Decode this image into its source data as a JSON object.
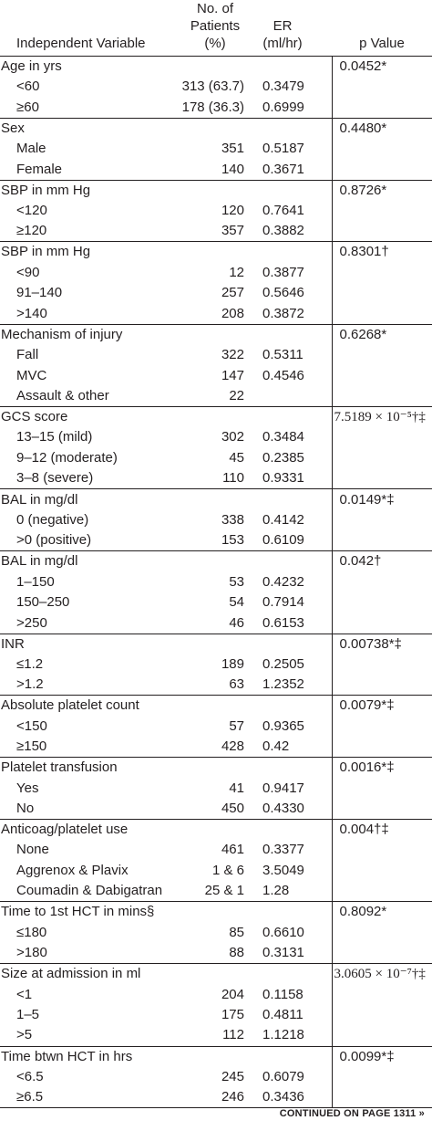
{
  "header": {
    "variable": "Independent Variable",
    "patients_line1": "No. of",
    "patients_line2": "Patients (%)",
    "er_line1": "ER",
    "er_line2": "(ml/hr)",
    "p_value": "p Value"
  },
  "groups": [
    {
      "label": "Age in yrs",
      "p": "0.0452*",
      "rows": [
        {
          "label": "<60",
          "patients": "313 (63.7)",
          "er": "0.3479"
        },
        {
          "label": "≥60",
          "patients": "178 (36.3)",
          "er": "0.6999"
        }
      ]
    },
    {
      "label": "Sex",
      "p": "0.4480*",
      "rows": [
        {
          "label": "Male",
          "patients": "351",
          "er": "0.5187"
        },
        {
          "label": "Female",
          "patients": "140",
          "er": "0.3671"
        }
      ]
    },
    {
      "label": "SBP in mm Hg",
      "p": "0.8726*",
      "rows": [
        {
          "label": "<120",
          "patients": "120",
          "er": "0.7641"
        },
        {
          "label": "≥120",
          "patients": "357",
          "er": "0.3882"
        }
      ]
    },
    {
      "label": "SBP in mm Hg",
      "p": "0.8301†",
      "rows": [
        {
          "label": "<90",
          "patients": "12",
          "er": "0.3877"
        },
        {
          "label": "91–140",
          "patients": "257",
          "er": "0.5646"
        },
        {
          "label": ">140",
          "patients": "208",
          "er": "0.3872"
        }
      ]
    },
    {
      "label": "Mechanism of injury",
      "p": "0.6268*",
      "rows": [
        {
          "label": "Fall",
          "patients": "322",
          "er": "0.5311"
        },
        {
          "label": "MVC",
          "patients": "147",
          "er": "0.4546"
        },
        {
          "label": "Assault & other",
          "patients": "22",
          "er": ""
        }
      ]
    },
    {
      "label": "GCS score",
      "p": "7.5189 × 10⁻⁵†‡",
      "p_serif": true,
      "rows": [
        {
          "label": "13–15 (mild)",
          "patients": "302",
          "er": "0.3484"
        },
        {
          "label": "9–12 (moderate)",
          "patients": "45",
          "er": "0.2385"
        },
        {
          "label": "3–8 (severe)",
          "patients": "110",
          "er": "0.9331"
        }
      ]
    },
    {
      "label": "BAL in mg/dl",
      "p": "0.0149*‡",
      "rows": [
        {
          "label": "0 (negative)",
          "patients": "338",
          "er": "0.4142"
        },
        {
          "label": ">0 (positive)",
          "patients": "153",
          "er": "0.6109"
        }
      ]
    },
    {
      "label": "BAL in mg/dl",
      "p": "0.042†",
      "rows": [
        {
          "label": "1–150",
          "patients": "53",
          "er": "0.4232"
        },
        {
          "label": "150–250",
          "patients": "54",
          "er": "0.7914"
        },
        {
          "label": ">250",
          "patients": "46",
          "er": "0.6153"
        }
      ]
    },
    {
      "label": "INR",
      "p": "0.00738*‡",
      "rows": [
        {
          "label": "≤1.2",
          "patients": "189",
          "er": "0.2505"
        },
        {
          "label": ">1.2",
          "patients": "63",
          "er": "1.2352"
        }
      ]
    },
    {
      "label": "Absolute platelet count",
      "p": "0.0079*‡",
      "rows": [
        {
          "label": "<150",
          "patients": "57",
          "er": "0.9365"
        },
        {
          "label": "≥150",
          "patients": "428",
          "er": "0.42"
        }
      ]
    },
    {
      "label": "Platelet transfusion",
      "p": "0.0016*‡",
      "rows": [
        {
          "label": "Yes",
          "patients": "41",
          "er": "0.9417"
        },
        {
          "label": "No",
          "patients": "450",
          "er": "0.4330"
        }
      ]
    },
    {
      "label": "Anticoag/platelet use",
      "p": "0.004†‡",
      "rows": [
        {
          "label": "None",
          "patients": "461",
          "er": "0.3377"
        },
        {
          "label": "Aggrenox & Plavix",
          "patients": "1 & 6",
          "er": "3.5049"
        },
        {
          "label": "Coumadin & Dabigatran",
          "patients": "25 & 1",
          "er": "1.28"
        }
      ]
    },
    {
      "label": "Time to 1st HCT in mins§",
      "p": "0.8092*",
      "rows": [
        {
          "label": "≤180",
          "patients": "85",
          "er": "0.6610"
        },
        {
          "label": ">180",
          "patients": "88",
          "er": "0.3131"
        }
      ]
    },
    {
      "label": "Size at admission in ml",
      "p": "3.0605 × 10⁻⁷†‡",
      "p_serif": true,
      "rows": [
        {
          "label": "<1",
          "patients": "204",
          "er": "0.1158"
        },
        {
          "label": "1–5",
          "patients": "175",
          "er": "0.4811"
        },
        {
          "label": ">5",
          "patients": "112",
          "er": "1.1218"
        }
      ]
    },
    {
      "label": "Time btwn HCT in hrs",
      "p": "0.0099*‡",
      "rows": [
        {
          "label": "<6.5",
          "patients": "245",
          "er": "0.6079"
        },
        {
          "label": "≥6.5",
          "patients": "246",
          "er": "0.3436"
        }
      ]
    }
  ],
  "footer": "CONTINUED ON PAGE 1311 »"
}
